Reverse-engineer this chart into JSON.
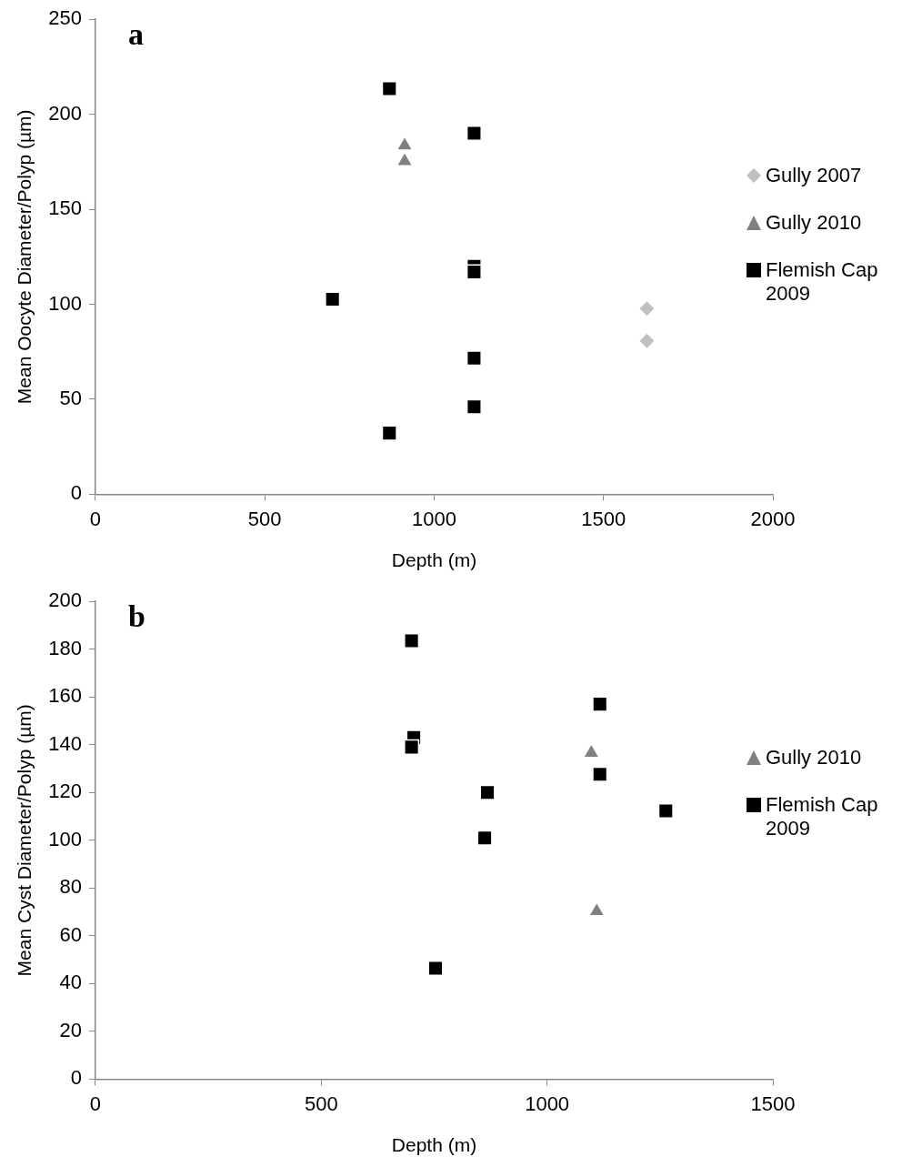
{
  "chart_data": [
    {
      "type": "scatter",
      "title": "a",
      "xlabel": "Depth (m)",
      "ylabel": "Mean Oocyte Diameter/Polyp (µm)",
      "xlim": [
        0,
        2000
      ],
      "xticks": [
        0,
        500,
        1000,
        1500,
        2000
      ],
      "ylim": [
        0,
        250
      ],
      "yticks": [
        0,
        50,
        100,
        150,
        200,
        250
      ],
      "grid": false,
      "legend": "right",
      "series": [
        {
          "name": "Gully 2007",
          "color": "#c0c0c0",
          "marker": "diamond",
          "x": [
            1628,
            1628
          ],
          "values": [
            97.7,
            80.7
          ]
        },
        {
          "name": "Gully 2010",
          "color": "#808080",
          "marker": "triangle",
          "x": [
            913,
            913
          ],
          "values": [
            183.6,
            175.3
          ]
        },
        {
          "name": "Flemish Cap 2009",
          "color": "#000000",
          "marker": "square",
          "x": [
            868,
            1118,
            1118,
            1118,
            700,
            1118,
            1118,
            868
          ],
          "values": [
            213.5,
            190,
            120,
            117,
            102.6,
            71.6,
            46,
            32.2
          ]
        }
      ]
    },
    {
      "type": "scatter",
      "title": "b",
      "xlabel": "Depth (m)",
      "ylabel": "Mean Cyst Diameter/Polyp (µm)",
      "xlim": [
        0,
        1500
      ],
      "xticks": [
        0,
        500,
        1000,
        1500
      ],
      "ylim": [
        0,
        200
      ],
      "yticks": [
        0,
        20,
        40,
        60,
        80,
        100,
        120,
        140,
        160,
        180,
        200
      ],
      "grid": false,
      "legend": "right",
      "series": [
        {
          "name": "Gully 2010",
          "color": "#808080",
          "marker": "triangle",
          "x": [
            1098,
            1110
          ],
          "values": [
            136.6,
            70.3
          ]
        },
        {
          "name": "Flemish Cap 2009",
          "color": "#000000",
          "marker": "square",
          "x": [
            700,
            705,
            700,
            868,
            862,
            753,
            1117,
            1117,
            1263
          ],
          "values": [
            183.5,
            143,
            139,
            120,
            101,
            46.4,
            157,
            127.6,
            112.3
          ]
        }
      ]
    }
  ]
}
